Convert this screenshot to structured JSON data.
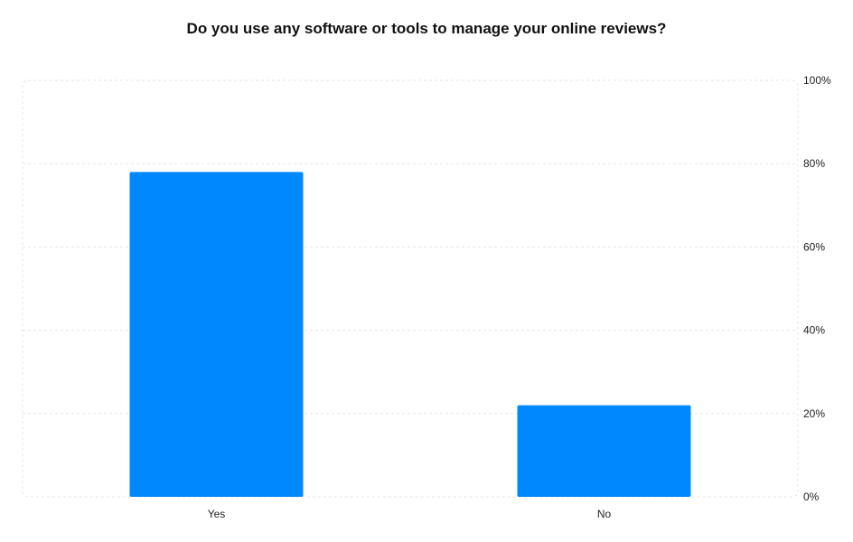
{
  "chart_data": {
    "type": "bar",
    "title": "Do you use any software or tools to manage your online reviews?",
    "categories": [
      "Yes",
      "No"
    ],
    "values": [
      78,
      22
    ],
    "ylim": [
      0,
      100
    ],
    "yticks": [
      "0%",
      "20%",
      "40%",
      "60%",
      "80%",
      "100%"
    ],
    "y_axis_side": "right",
    "grid": true,
    "bar_color": "#0088ff",
    "grid_color": "#e6e6e6"
  }
}
